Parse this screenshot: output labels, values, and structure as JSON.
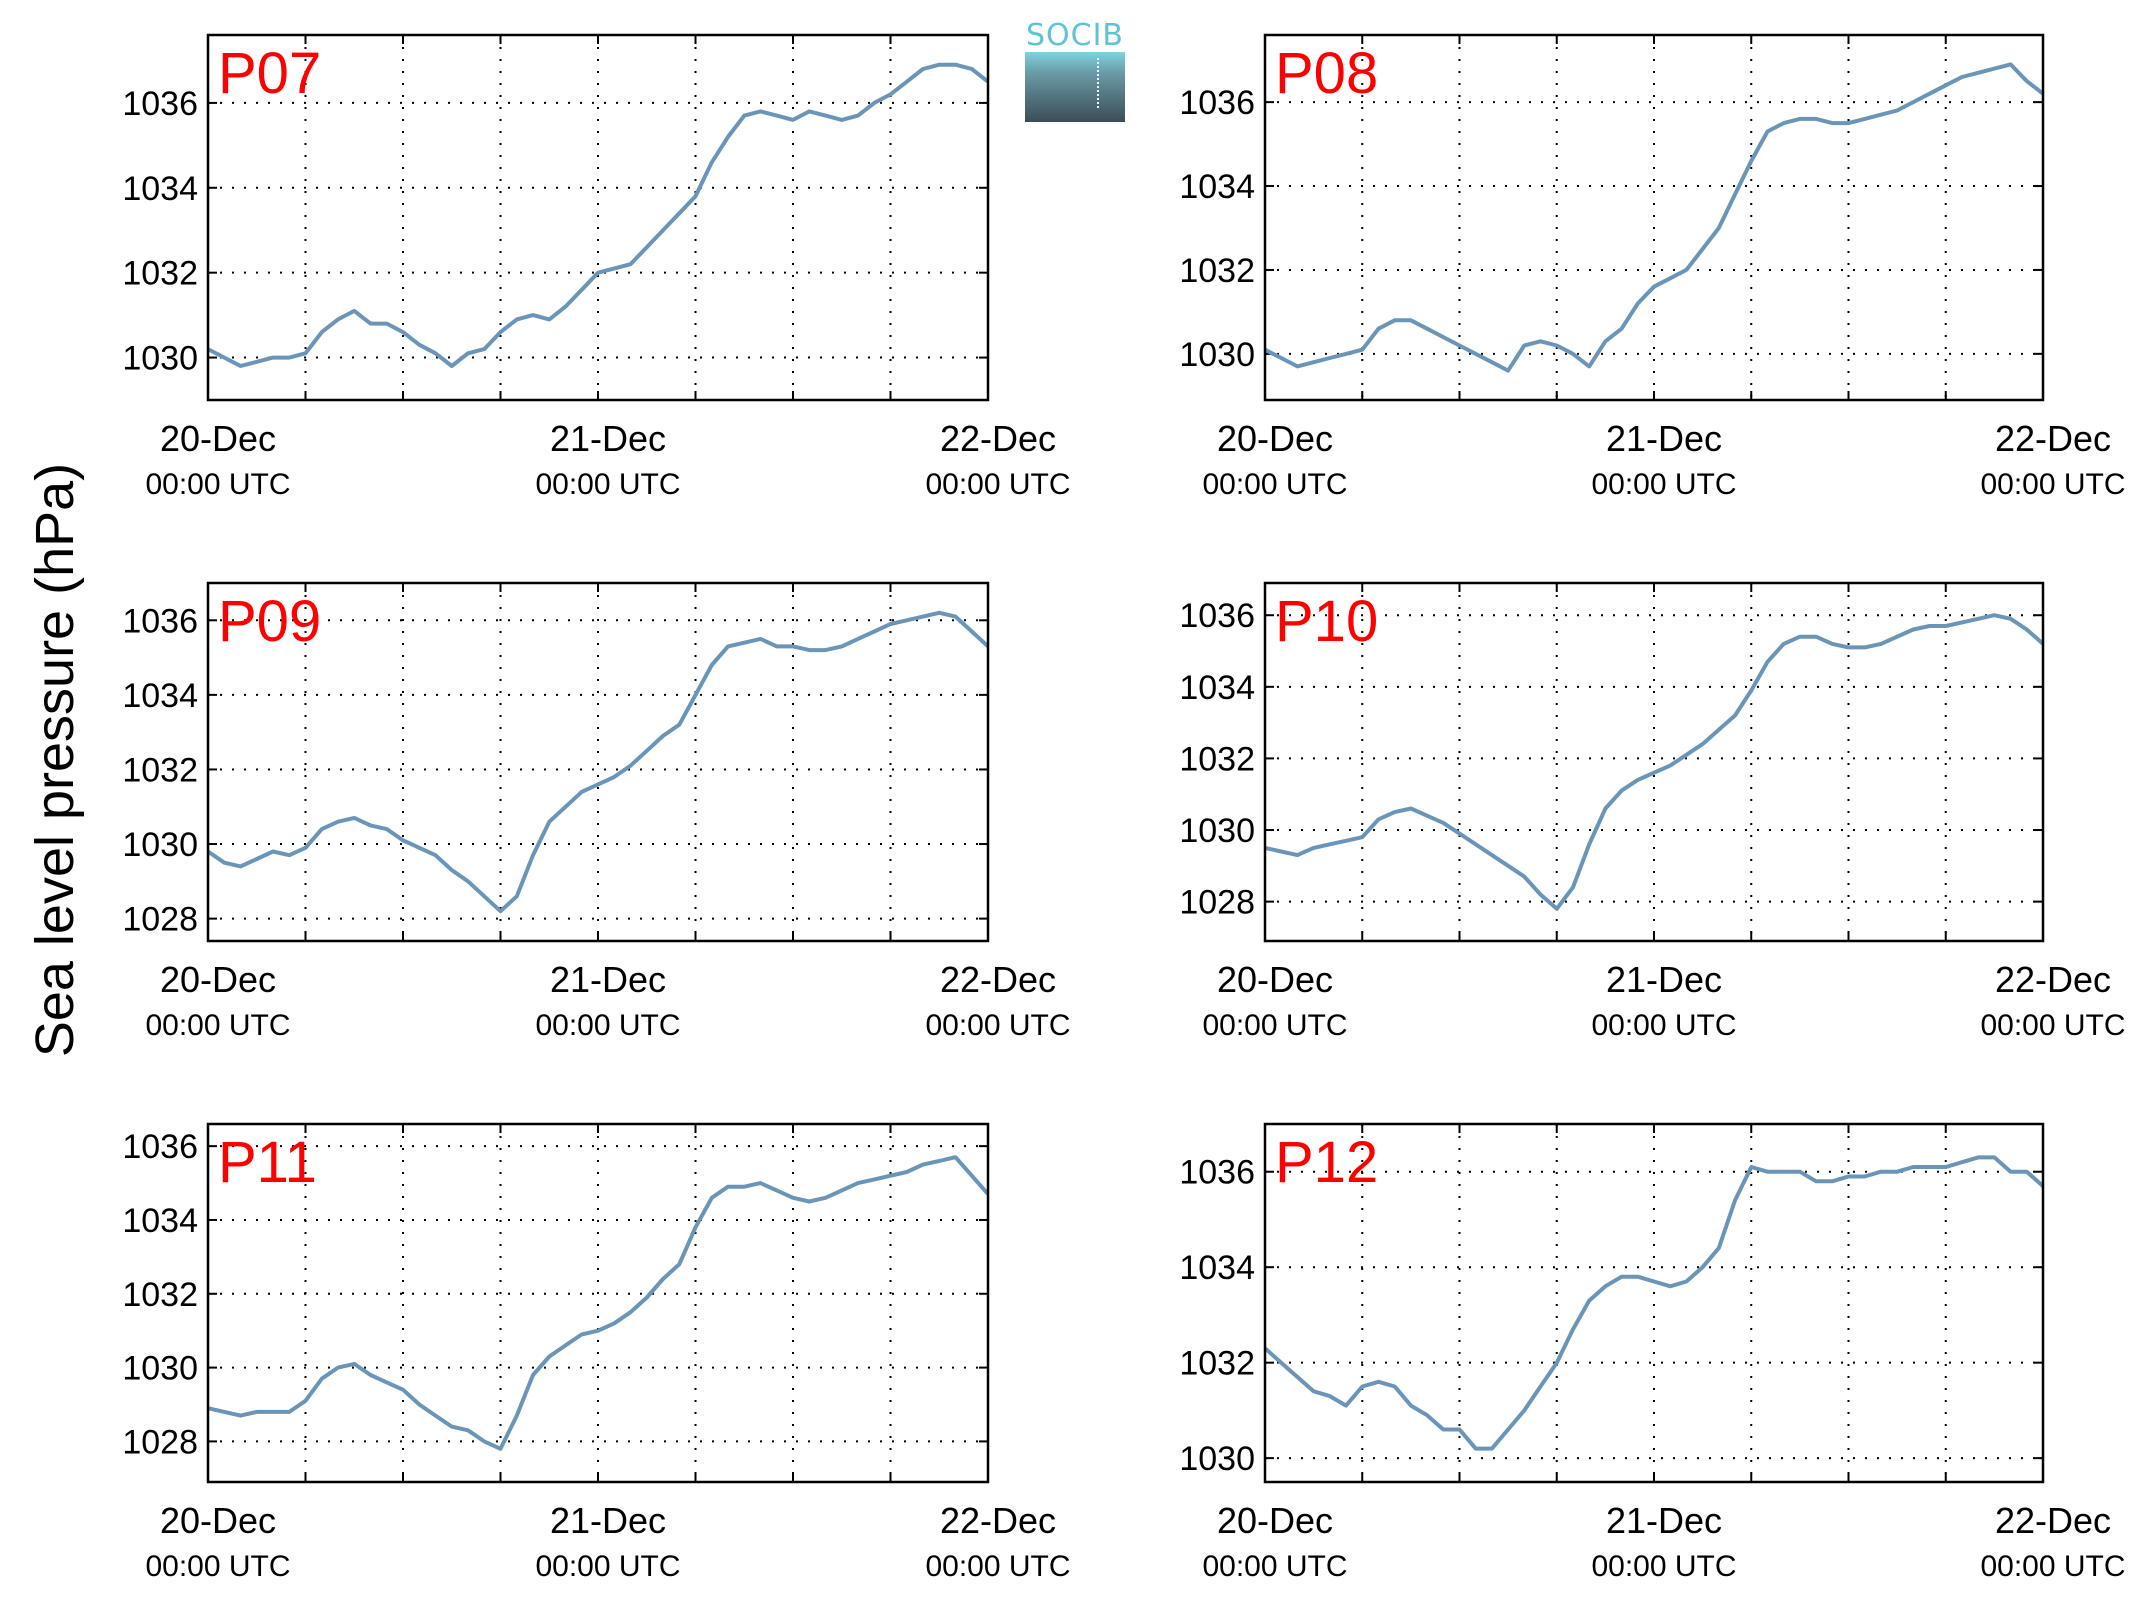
{
  "figure": {
    "ylabel": "Sea level pressure (hPa)",
    "logo_text": "SOCIB",
    "line_color": "#6b95b8",
    "label_color": "#ff0000"
  },
  "chart_data": [
    {
      "type": "line",
      "title": "P07",
      "x_labels": [
        "20-Dec\n00:00 UTC",
        "21-Dec\n00:00 UTC",
        "22-Dec\n00:00 UTC"
      ],
      "xlim": [
        0,
        48
      ],
      "ylim": [
        1029,
        1037.6
      ],
      "yticks": [
        1030,
        1032,
        1034,
        1036
      ],
      "grid": true,
      "x": [
        0,
        1,
        2,
        3,
        4,
        5,
        6,
        7,
        8,
        9,
        10,
        11,
        12,
        13,
        14,
        15,
        16,
        17,
        18,
        19,
        20,
        21,
        22,
        23,
        24,
        25,
        26,
        27,
        28,
        29,
        30,
        31,
        32,
        33,
        34,
        35,
        36,
        37,
        38,
        39,
        40,
        41,
        42,
        43,
        44,
        45,
        46,
        47,
        48
      ],
      "y": [
        1030.2,
        1030.0,
        1029.8,
        1029.9,
        1030.0,
        1030.0,
        1030.1,
        1030.6,
        1030.9,
        1031.1,
        1030.8,
        1030.8,
        1030.6,
        1030.3,
        1030.1,
        1029.8,
        1030.1,
        1030.2,
        1030.6,
        1030.9,
        1031.0,
        1030.9,
        1031.2,
        1031.6,
        1032.0,
        1032.1,
        1032.2,
        1032.6,
        1033.0,
        1033.4,
        1033.8,
        1034.6,
        1035.2,
        1035.7,
        1035.8,
        1035.7,
        1035.6,
        1035.8,
        1035.7,
        1035.6,
        1035.7,
        1036.0,
        1036.2,
        1036.5,
        1036.8,
        1036.9,
        1036.9,
        1036.8,
        1036.5
      ]
    },
    {
      "type": "line",
      "title": "P08",
      "x_labels": [
        "20-Dec\n00:00 UTC",
        "21-Dec\n00:00 UTC",
        "22-Dec\n00:00 UTC"
      ],
      "xlim": [
        0,
        48
      ],
      "ylim": [
        1028.9,
        1037.6
      ],
      "yticks": [
        1030,
        1032,
        1034,
        1036
      ],
      "grid": true,
      "x": [
        0,
        1,
        2,
        3,
        4,
        5,
        6,
        7,
        8,
        9,
        10,
        11,
        12,
        13,
        14,
        15,
        16,
        17,
        18,
        19,
        20,
        21,
        22,
        23,
        24,
        25,
        26,
        27,
        28,
        29,
        30,
        31,
        32,
        33,
        34,
        35,
        36,
        37,
        38,
        39,
        40,
        41,
        42,
        43,
        44,
        45,
        46,
        47,
        48
      ],
      "y": [
        1030.1,
        1029.9,
        1029.7,
        1029.8,
        1029.9,
        1030.0,
        1030.1,
        1030.6,
        1030.8,
        1030.8,
        1030.6,
        1030.4,
        1030.2,
        1030.0,
        1029.8,
        1029.6,
        1030.2,
        1030.3,
        1030.2,
        1030.0,
        1029.7,
        1030.3,
        1030.6,
        1031.2,
        1031.6,
        1031.8,
        1032.0,
        1032.5,
        1033.0,
        1033.8,
        1034.6,
        1035.3,
        1035.5,
        1035.6,
        1035.6,
        1035.5,
        1035.5,
        1035.6,
        1035.7,
        1035.8,
        1036.0,
        1036.2,
        1036.4,
        1036.6,
        1036.7,
        1036.8,
        1036.9,
        1036.5,
        1036.2
      ]
    },
    {
      "type": "line",
      "title": "P09",
      "x_labels": [
        "20-Dec\n00:00 UTC",
        "21-Dec\n00:00 UTC",
        "22-Dec\n00:00 UTC"
      ],
      "xlim": [
        0,
        48
      ],
      "ylim": [
        1027.4,
        1037.0
      ],
      "yticks": [
        1028,
        1030,
        1032,
        1034,
        1036
      ],
      "grid": true,
      "x": [
        0,
        1,
        2,
        3,
        4,
        5,
        6,
        7,
        8,
        9,
        10,
        11,
        12,
        13,
        14,
        15,
        16,
        17,
        18,
        19,
        20,
        21,
        22,
        23,
        24,
        25,
        26,
        27,
        28,
        29,
        30,
        31,
        32,
        33,
        34,
        35,
        36,
        37,
        38,
        39,
        40,
        41,
        42,
        43,
        44,
        45,
        46,
        47,
        48
      ],
      "y": [
        1029.8,
        1029.5,
        1029.4,
        1029.6,
        1029.8,
        1029.7,
        1029.9,
        1030.4,
        1030.6,
        1030.7,
        1030.5,
        1030.4,
        1030.1,
        1029.9,
        1029.7,
        1029.3,
        1029.0,
        1028.6,
        1028.2,
        1028.6,
        1029.7,
        1030.6,
        1031.0,
        1031.4,
        1031.6,
        1031.8,
        1032.1,
        1032.5,
        1032.9,
        1033.2,
        1034.0,
        1034.8,
        1035.3,
        1035.4,
        1035.5,
        1035.3,
        1035.3,
        1035.2,
        1035.2,
        1035.3,
        1035.5,
        1035.7,
        1035.9,
        1036.0,
        1036.1,
        1036.2,
        1036.1,
        1035.7,
        1035.3
      ]
    },
    {
      "type": "line",
      "title": "P10",
      "x_labels": [
        "20-Dec\n00:00 UTC",
        "21-Dec\n00:00 UTC",
        "22-Dec\n00:00 UTC"
      ],
      "xlim": [
        0,
        48
      ],
      "ylim": [
        1026.9,
        1036.9
      ],
      "yticks": [
        1028,
        1030,
        1032,
        1034,
        1036
      ],
      "grid": true,
      "x": [
        0,
        1,
        2,
        3,
        4,
        5,
        6,
        7,
        8,
        9,
        10,
        11,
        12,
        13,
        14,
        15,
        16,
        17,
        18,
        19,
        20,
        21,
        22,
        23,
        24,
        25,
        26,
        27,
        28,
        29,
        30,
        31,
        32,
        33,
        34,
        35,
        36,
        37,
        38,
        39,
        40,
        41,
        42,
        43,
        44,
        45,
        46,
        47,
        48
      ],
      "y": [
        1029.5,
        1029.4,
        1029.3,
        1029.5,
        1029.6,
        1029.7,
        1029.8,
        1030.3,
        1030.5,
        1030.6,
        1030.4,
        1030.2,
        1029.9,
        1029.6,
        1029.3,
        1029.0,
        1028.7,
        1028.2,
        1027.8,
        1028.4,
        1029.6,
        1030.6,
        1031.1,
        1031.4,
        1031.6,
        1031.8,
        1032.1,
        1032.4,
        1032.8,
        1033.2,
        1033.9,
        1034.7,
        1035.2,
        1035.4,
        1035.4,
        1035.2,
        1035.1,
        1035.1,
        1035.2,
        1035.4,
        1035.6,
        1035.7,
        1035.7,
        1035.8,
        1035.9,
        1036.0,
        1035.9,
        1035.6,
        1035.2
      ]
    },
    {
      "type": "line",
      "title": "P11",
      "x_labels": [
        "20-Dec\n00:00 UTC",
        "21-Dec\n00:00 UTC",
        "22-Dec\n00:00 UTC"
      ],
      "xlim": [
        0,
        48
      ],
      "ylim": [
        1026.9,
        1036.6
      ],
      "yticks": [
        1028,
        1030,
        1032,
        1034,
        1036
      ],
      "grid": true,
      "x": [
        0,
        1,
        2,
        3,
        4,
        5,
        6,
        7,
        8,
        9,
        10,
        11,
        12,
        13,
        14,
        15,
        16,
        17,
        18,
        19,
        20,
        21,
        22,
        23,
        24,
        25,
        26,
        27,
        28,
        29,
        30,
        31,
        32,
        33,
        34,
        35,
        36,
        37,
        38,
        39,
        40,
        41,
        42,
        43,
        44,
        45,
        46,
        47,
        48
      ],
      "y": [
        1028.9,
        1028.8,
        1028.7,
        1028.8,
        1028.8,
        1028.8,
        1029.1,
        1029.7,
        1030.0,
        1030.1,
        1029.8,
        1029.6,
        1029.4,
        1029.0,
        1028.7,
        1028.4,
        1028.3,
        1028.0,
        1027.8,
        1028.7,
        1029.8,
        1030.3,
        1030.6,
        1030.9,
        1031.0,
        1031.2,
        1031.5,
        1031.9,
        1032.4,
        1032.8,
        1033.8,
        1034.6,
        1034.9,
        1034.9,
        1035.0,
        1034.8,
        1034.6,
        1034.5,
        1034.6,
        1034.8,
        1035.0,
        1035.1,
        1035.2,
        1035.3,
        1035.5,
        1035.6,
        1035.7,
        1035.2,
        1034.7
      ]
    },
    {
      "type": "line",
      "title": "P12",
      "x_labels": [
        "20-Dec\n00:00 UTC",
        "21-Dec\n00:00 UTC",
        "22-Dec\n00:00 UTC"
      ],
      "xlim": [
        0,
        48
      ],
      "ylim": [
        1029.5,
        1037.0
      ],
      "yticks": [
        1030,
        1032,
        1034,
        1036
      ],
      "grid": true,
      "x": [
        0,
        1,
        2,
        3,
        4,
        5,
        6,
        7,
        8,
        9,
        10,
        11,
        12,
        13,
        14,
        15,
        16,
        17,
        18,
        19,
        20,
        21,
        22,
        23,
        24,
        25,
        26,
        27,
        28,
        29,
        30,
        31,
        32,
        33,
        34,
        35,
        36,
        37,
        38,
        39,
        40,
        41,
        42,
        43,
        44,
        45,
        46,
        47,
        48
      ],
      "y": [
        1032.3,
        1032.0,
        1031.7,
        1031.4,
        1031.3,
        1031.1,
        1031.5,
        1031.6,
        1031.5,
        1031.1,
        1030.9,
        1030.6,
        1030.6,
        1030.2,
        1030.2,
        1030.6,
        1031.0,
        1031.5,
        1032.0,
        1032.7,
        1033.3,
        1033.6,
        1033.8,
        1033.8,
        1033.7,
        1033.6,
        1033.7,
        1034.0,
        1034.4,
        1035.4,
        1036.1,
        1036.0,
        1036.0,
        1036.0,
        1035.8,
        1035.8,
        1035.9,
        1035.9,
        1036.0,
        1036.0,
        1036.1,
        1036.1,
        1036.1,
        1036.2,
        1036.3,
        1036.3,
        1036.0,
        1036.0,
        1035.7
      ]
    }
  ]
}
